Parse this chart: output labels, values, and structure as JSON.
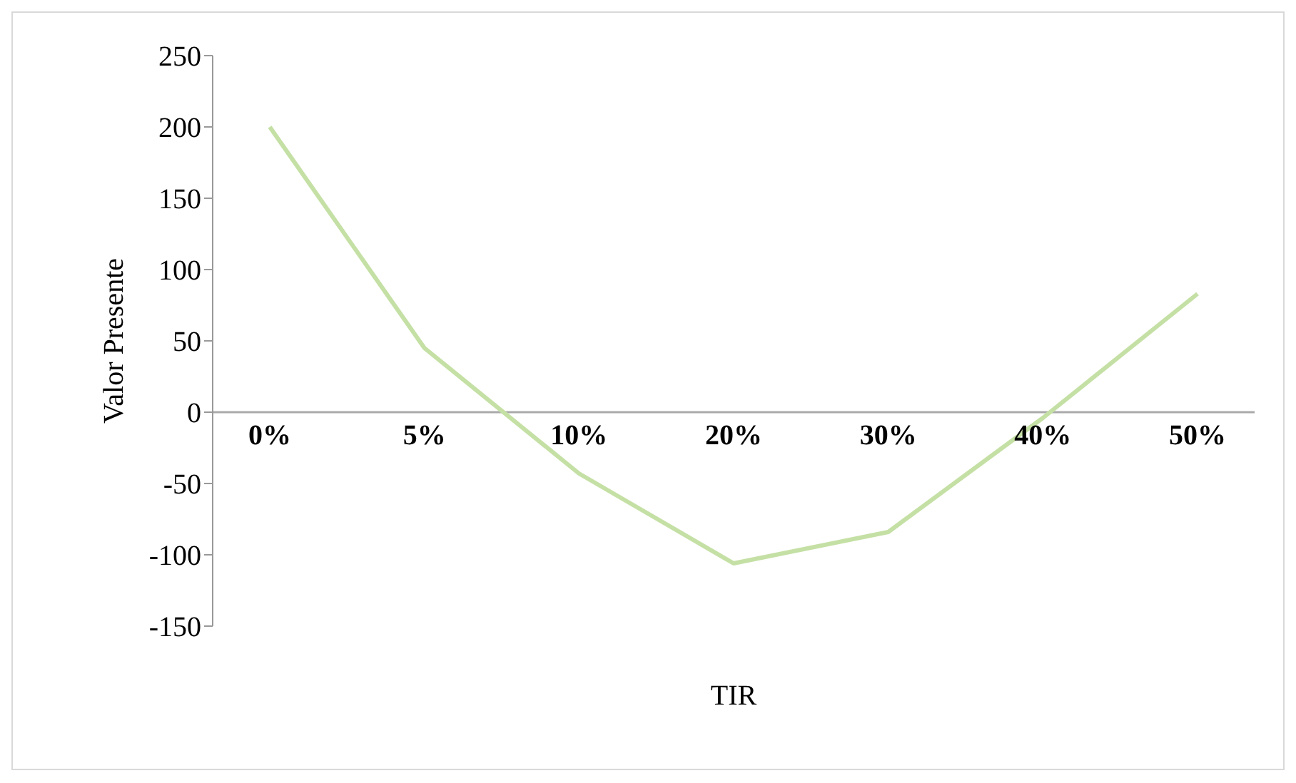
{
  "chart_data": {
    "type": "line",
    "xlabel": "TIR",
    "ylabel": "Valor Presente",
    "categories": [
      "0%",
      "5%",
      "10%",
      "20%",
      "30%",
      "40%",
      "50%"
    ],
    "series": [
      {
        "color": "#c5e0a5",
        "values": [
          200,
          45,
          -43,
          -106,
          -84,
          -4,
          83
        ]
      }
    ],
    "ylim": [
      -150,
      250
    ],
    "yticks": [
      -150,
      -100,
      -50,
      0,
      50,
      100,
      150,
      200,
      250
    ],
    "marker": "none"
  }
}
